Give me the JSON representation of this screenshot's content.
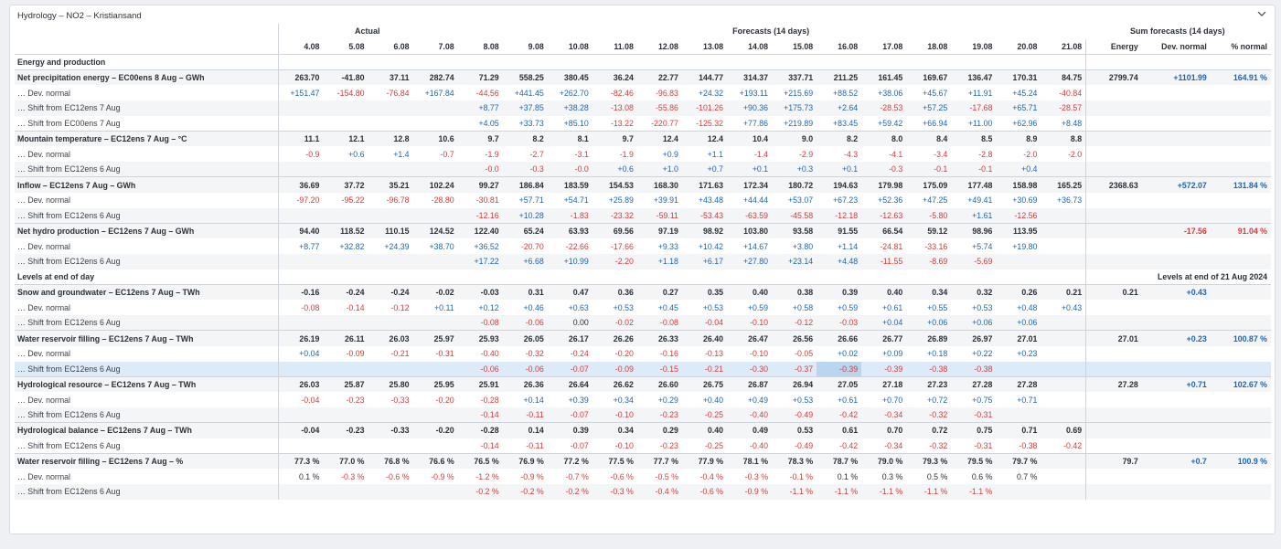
{
  "panel": {
    "title": "Hydrology – NO2 – Kristiansand"
  },
  "headers": {
    "actual": "Actual",
    "forecasts": "Forecasts (14 days)",
    "sum": "Sum forecasts (14 days)",
    "dates": [
      "4.08",
      "5.08",
      "6.08",
      "7.08",
      "8.08",
      "9.08",
      "10.08",
      "11.08",
      "12.08",
      "13.08",
      "14.08",
      "15.08",
      "16.08",
      "17.08",
      "18.08",
      "19.08",
      "20.08",
      "21.08"
    ],
    "sum_cols": [
      "Energy",
      "Dev. normal",
      "% normal"
    ]
  },
  "sections": [
    {
      "title": "Energy and production",
      "levels_note": ""
    },
    {
      "title": "Levels at end of day",
      "levels_note": "Levels at end of 21 Aug 2024"
    }
  ],
  "rows": [
    {
      "type": "main",
      "label": "Net precipitation energy – EC00ens 8 Aug – GWh",
      "v": [
        "263.70",
        "-41.80",
        "37.11",
        "282.74",
        "71.29",
        "558.25",
        "380.45",
        "36.24",
        "22.77",
        "144.77",
        "314.37",
        "337.71",
        "211.25",
        "161.45",
        "169.67",
        "136.47",
        "170.31",
        "84.75"
      ],
      "s": [
        "2799.74",
        "+1101.99",
        "164.91 %"
      ]
    },
    {
      "type": "sub",
      "label": "… Dev. normal",
      "v": [
        "+151.47",
        "-154.80",
        "-76.84",
        "+167.84",
        "-44.56",
        "+441.45",
        "+262.70",
        "-82.46",
        "-96.83",
        "+24.32",
        "+193.11",
        "+215.69",
        "+88.52",
        "+38.06",
        "+45.67",
        "+11.91",
        "+45.24",
        "-40.84"
      ],
      "s": [
        "",
        "",
        ""
      ]
    },
    {
      "type": "sub alt",
      "label": "… Shift from EC12ens 7 Aug",
      "v": [
        "",
        "",
        "",
        "",
        "+8.77",
        "+37.85",
        "+38.28",
        "-13.08",
        "-55.86",
        "-101.26",
        "+90.36",
        "+175.73",
        "+2.64",
        "-28.53",
        "+57.25",
        "-17.68",
        "+65.71",
        "-28.57"
      ],
      "s": [
        "",
        "",
        ""
      ]
    },
    {
      "type": "sub",
      "label": "… Shift from EC00ens 7 Aug",
      "v": [
        "",
        "",
        "",
        "",
        "+4.05",
        "+33.73",
        "+85.10",
        "-13.22",
        "-220.77",
        "-125.32",
        "+77.86",
        "+219.89",
        "+83.45",
        "+59.42",
        "+66.94",
        "+11.00",
        "+62.96",
        "+8.48"
      ],
      "s": [
        "",
        "",
        ""
      ]
    },
    {
      "type": "main",
      "label": "Mountain temperature – EC12ens 7 Aug – °C",
      "v": [
        "11.1",
        "12.1",
        "12.8",
        "10.6",
        "9.7",
        "8.2",
        "8.1",
        "9.7",
        "12.4",
        "12.4",
        "10.4",
        "9.0",
        "8.2",
        "8.0",
        "8.4",
        "8.5",
        "8.9",
        "8.8"
      ],
      "s": [
        "",
        "",
        ""
      ]
    },
    {
      "type": "sub",
      "label": "… Dev. normal",
      "v": [
        "-0.9",
        "+0.6",
        "+1.4",
        "-0.7",
        "-1.9",
        "-2.7",
        "-3.1",
        "-1.9",
        "+0.9",
        "+1.1",
        "-1.4",
        "-2.9",
        "-4.3",
        "-4.1",
        "-3.4",
        "-2.8",
        "-2.0",
        "-2.0"
      ],
      "s": [
        "",
        "",
        ""
      ]
    },
    {
      "type": "sub alt",
      "label": "… Shift from EC12ens 6 Aug",
      "v": [
        "",
        "",
        "",
        "",
        "-0.0",
        "-0.3",
        "-0.0",
        "+0.6",
        "+1.0",
        "+0.7",
        "+0.1",
        "+0.3",
        "+0.1",
        "-0.3",
        "-0.1",
        "-0.1",
        "+0.4",
        ""
      ],
      "s": [
        "",
        "",
        ""
      ]
    },
    {
      "type": "main",
      "label": "Inflow – EC12ens 7 Aug – GWh",
      "v": [
        "36.69",
        "37.72",
        "35.21",
        "102.24",
        "99.27",
        "186.84",
        "183.59",
        "154.53",
        "168.30",
        "171.63",
        "172.34",
        "180.72",
        "194.63",
        "179.98",
        "175.09",
        "177.48",
        "158.98",
        "165.25"
      ],
      "s": [
        "2368.63",
        "+572.07",
        "131.84 %"
      ]
    },
    {
      "type": "sub",
      "label": "… Dev. normal",
      "v": [
        "-97.20",
        "-95.22",
        "-96.78",
        "-28.80",
        "-30.81",
        "+57.71",
        "+54.71",
        "+25.89",
        "+39.91",
        "+43.48",
        "+44.44",
        "+53.07",
        "+67.23",
        "+52.36",
        "+47.25",
        "+49.41",
        "+30.69",
        "+36.73"
      ],
      "s": [
        "",
        "",
        ""
      ]
    },
    {
      "type": "sub alt",
      "label": "… Shift from EC12ens 6 Aug",
      "v": [
        "",
        "",
        "",
        "",
        "-12.16",
        "+10.28",
        "-1.83",
        "-23.32",
        "-59.11",
        "-53.43",
        "-63.59",
        "-45.58",
        "-12.18",
        "-12.63",
        "-5.80",
        "+1.61",
        "-12.56",
        ""
      ],
      "s": [
        "",
        "",
        ""
      ]
    },
    {
      "type": "main",
      "label": "Net hydro production – EC12ens 7 Aug – GWh",
      "v": [
        "94.40",
        "118.52",
        "110.15",
        "124.52",
        "122.40",
        "65.24",
        "63.93",
        "69.56",
        "97.19",
        "98.92",
        "103.80",
        "93.58",
        "91.55",
        "66.54",
        "59.12",
        "98.96",
        "113.95",
        ""
      ],
      "s": [
        "",
        "-17.56",
        "91.04 %"
      ]
    },
    {
      "type": "sub",
      "label": "… Dev. normal",
      "v": [
        "+8.77",
        "+32.82",
        "+24.39",
        "+38.70",
        "+36.52",
        "-20.70",
        "-22.66",
        "-17.66",
        "+9.33",
        "+10.42",
        "+14.67",
        "+3.80",
        "+1.14",
        "-24.81",
        "-33.16",
        "+5.74",
        "+19.80",
        ""
      ],
      "s": [
        "",
        "",
        ""
      ]
    },
    {
      "type": "sub alt",
      "label": "… Shift from EC12ens 6 Aug",
      "v": [
        "",
        "",
        "",
        "",
        "+17.22",
        "+6.68",
        "+10.99",
        "-2.20",
        "+1.18",
        "+6.17",
        "+27.80",
        "+23.14",
        "+4.48",
        "-11.55",
        "-8.69",
        "-5.69",
        "",
        ""
      ],
      "s": [
        "",
        "",
        ""
      ]
    },
    {
      "type": "section",
      "section": 1
    },
    {
      "type": "main",
      "label": "Snow and groundwater – EC12ens 7 Aug – TWh",
      "v": [
        "-0.16",
        "-0.24",
        "-0.24",
        "-0.02",
        "-0.03",
        "0.31",
        "0.47",
        "0.36",
        "0.27",
        "0.35",
        "0.40",
        "0.38",
        "0.39",
        "0.40",
        "0.34",
        "0.32",
        "0.26",
        "0.21"
      ],
      "s": [
        "0.21",
        "+0.43",
        ""
      ]
    },
    {
      "type": "sub",
      "label": "… Dev. normal",
      "v": [
        "-0.08",
        "-0.14",
        "-0.12",
        "+0.11",
        "+0.12",
        "+0.46",
        "+0.63",
        "+0.53",
        "+0.45",
        "+0.53",
        "+0.59",
        "+0.58",
        "+0.59",
        "+0.61",
        "+0.55",
        "+0.53",
        "+0.48",
        "+0.43"
      ],
      "s": [
        "",
        "",
        ""
      ]
    },
    {
      "type": "sub alt",
      "label": "… Shift from EC12ens 6 Aug",
      "v": [
        "",
        "",
        "",
        "",
        "-0.08",
        "-0.06",
        "0.00",
        "-0.02",
        "-0.08",
        "-0.04",
        "-0.10",
        "-0.12",
        "-0.03",
        "+0.04",
        "+0.06",
        "+0.06",
        "+0.06",
        ""
      ],
      "s": [
        "",
        "",
        ""
      ]
    },
    {
      "type": "main",
      "label": "Water reservoir filling – EC12ens 7 Aug – TWh",
      "v": [
        "26.19",
        "26.11",
        "26.03",
        "25.97",
        "25.93",
        "26.05",
        "26.17",
        "26.26",
        "26.33",
        "26.40",
        "26.47",
        "26.56",
        "26.66",
        "26.77",
        "26.89",
        "26.97",
        "27.01",
        ""
      ],
      "s": [
        "27.01",
        "+0.23",
        "100.87 %"
      ]
    },
    {
      "type": "sub",
      "label": "… Dev. normal",
      "v": [
        "+0.04",
        "-0.09",
        "-0.21",
        "-0.31",
        "-0.40",
        "-0.32",
        "-0.24",
        "-0.20",
        "-0.16",
        "-0.13",
        "-0.10",
        "-0.05",
        "+0.02",
        "+0.09",
        "+0.18",
        "+0.22",
        "+0.23",
        ""
      ],
      "s": [
        "",
        "",
        ""
      ]
    },
    {
      "type": "sub highlight",
      "label": "… Shift from EC12ens 6 Aug",
      "v": [
        "",
        "",
        "",
        "",
        "-0.06",
        "-0.06",
        "-0.07",
        "-0.09",
        "-0.15",
        "-0.21",
        "-0.30",
        "-0.37",
        "-0.39",
        "-0.39",
        "-0.38",
        "-0.38",
        "",
        ""
      ],
      "s": [
        "",
        "",
        ""
      ],
      "sel": 12
    },
    {
      "type": "main",
      "label": "Hydrological resource – EC12ens 7 Aug – TWh",
      "v": [
        "26.03",
        "25.87",
        "25.80",
        "25.95",
        "25.91",
        "26.36",
        "26.64",
        "26.62",
        "26.60",
        "26.75",
        "26.87",
        "26.94",
        "27.05",
        "27.18",
        "27.23",
        "27.28",
        "27.28",
        ""
      ],
      "s": [
        "27.28",
        "+0.71",
        "102.67 %"
      ]
    },
    {
      "type": "sub",
      "label": "… Dev. normal",
      "v": [
        "-0.04",
        "-0.23",
        "-0.33",
        "-0.20",
        "-0.28",
        "+0.14",
        "+0.39",
        "+0.34",
        "+0.29",
        "+0.40",
        "+0.49",
        "+0.53",
        "+0.61",
        "+0.70",
        "+0.72",
        "+0.75",
        "+0.71",
        ""
      ],
      "s": [
        "",
        "",
        ""
      ]
    },
    {
      "type": "sub alt",
      "label": "… Shift from EC12ens 6 Aug",
      "v": [
        "",
        "",
        "",
        "",
        "-0.14",
        "-0.11",
        "-0.07",
        "-0.10",
        "-0.23",
        "-0.25",
        "-0.40",
        "-0.49",
        "-0.42",
        "-0.34",
        "-0.32",
        "-0.31",
        "",
        ""
      ],
      "s": [
        "",
        "",
        ""
      ]
    },
    {
      "type": "main",
      "label": "Hydrological balance – EC12ens 7 Aug – TWh",
      "v": [
        "-0.04",
        "-0.23",
        "-0.33",
        "-0.20",
        "-0.28",
        "0.14",
        "0.39",
        "0.34",
        "0.29",
        "0.40",
        "0.49",
        "0.53",
        "0.61",
        "0.70",
        "0.72",
        "0.75",
        "0.71",
        "0.69"
      ],
      "s": [
        "",
        "",
        ""
      ]
    },
    {
      "type": "sub",
      "label": "… Shift from EC12ens 6 Aug",
      "v": [
        "",
        "",
        "",
        "",
        "-0.14",
        "-0.11",
        "-0.07",
        "-0.10",
        "-0.23",
        "-0.25",
        "-0.40",
        "-0.49",
        "-0.42",
        "-0.34",
        "-0.32",
        "-0.31",
        "-0.38",
        "-0.42"
      ],
      "s": [
        "",
        "",
        ""
      ]
    },
    {
      "type": "main",
      "label": "Water reservoir filling – EC12ens 7 Aug – %",
      "v": [
        "77.3 %",
        "77.0 %",
        "76.8 %",
        "76.6 %",
        "76.5 %",
        "76.9 %",
        "77.2 %",
        "77.5 %",
        "77.7 %",
        "77.9 %",
        "78.1 %",
        "78.3 %",
        "78.7 %",
        "79.0 %",
        "79.3 %",
        "79.5 %",
        "79.7 %",
        ""
      ],
      "s": [
        "79.7",
        "+0.7",
        "100.9 %"
      ]
    },
    {
      "type": "sub",
      "label": "… Dev. normal",
      "v": [
        "0.1 %",
        "-0.3 %",
        "-0.6 %",
        "-0.9 %",
        "-1.2 %",
        "-0.9 %",
        "-0.7 %",
        "-0.6 %",
        "-0.5 %",
        "-0.4 %",
        "-0.3 %",
        "-0.1 %",
        "0.1 %",
        "0.3 %",
        "0.5 %",
        "0.6 %",
        "0.7 %",
        ""
      ],
      "s": [
        "",
        "",
        ""
      ]
    },
    {
      "type": "sub alt",
      "label": "… Shift from EC12ens 6 Aug",
      "v": [
        "",
        "",
        "",
        "",
        "-0.2 %",
        "-0.2 %",
        "-0.2 %",
        "-0.3 %",
        "-0.4 %",
        "-0.6 %",
        "-0.9 %",
        "-1.1 %",
        "-1.1 %",
        "-1.1 %",
        "-1.1 %",
        "-1.1 %",
        "",
        ""
      ],
      "s": [
        "",
        "",
        ""
      ]
    }
  ],
  "colors": {
    "positive": "#1d65b5",
    "negative": "#d83a3a",
    "highlight": "#dcebf7",
    "selected": "#b9d6ee"
  },
  "icons": {
    "collapse": "chevron-down-icon"
  }
}
